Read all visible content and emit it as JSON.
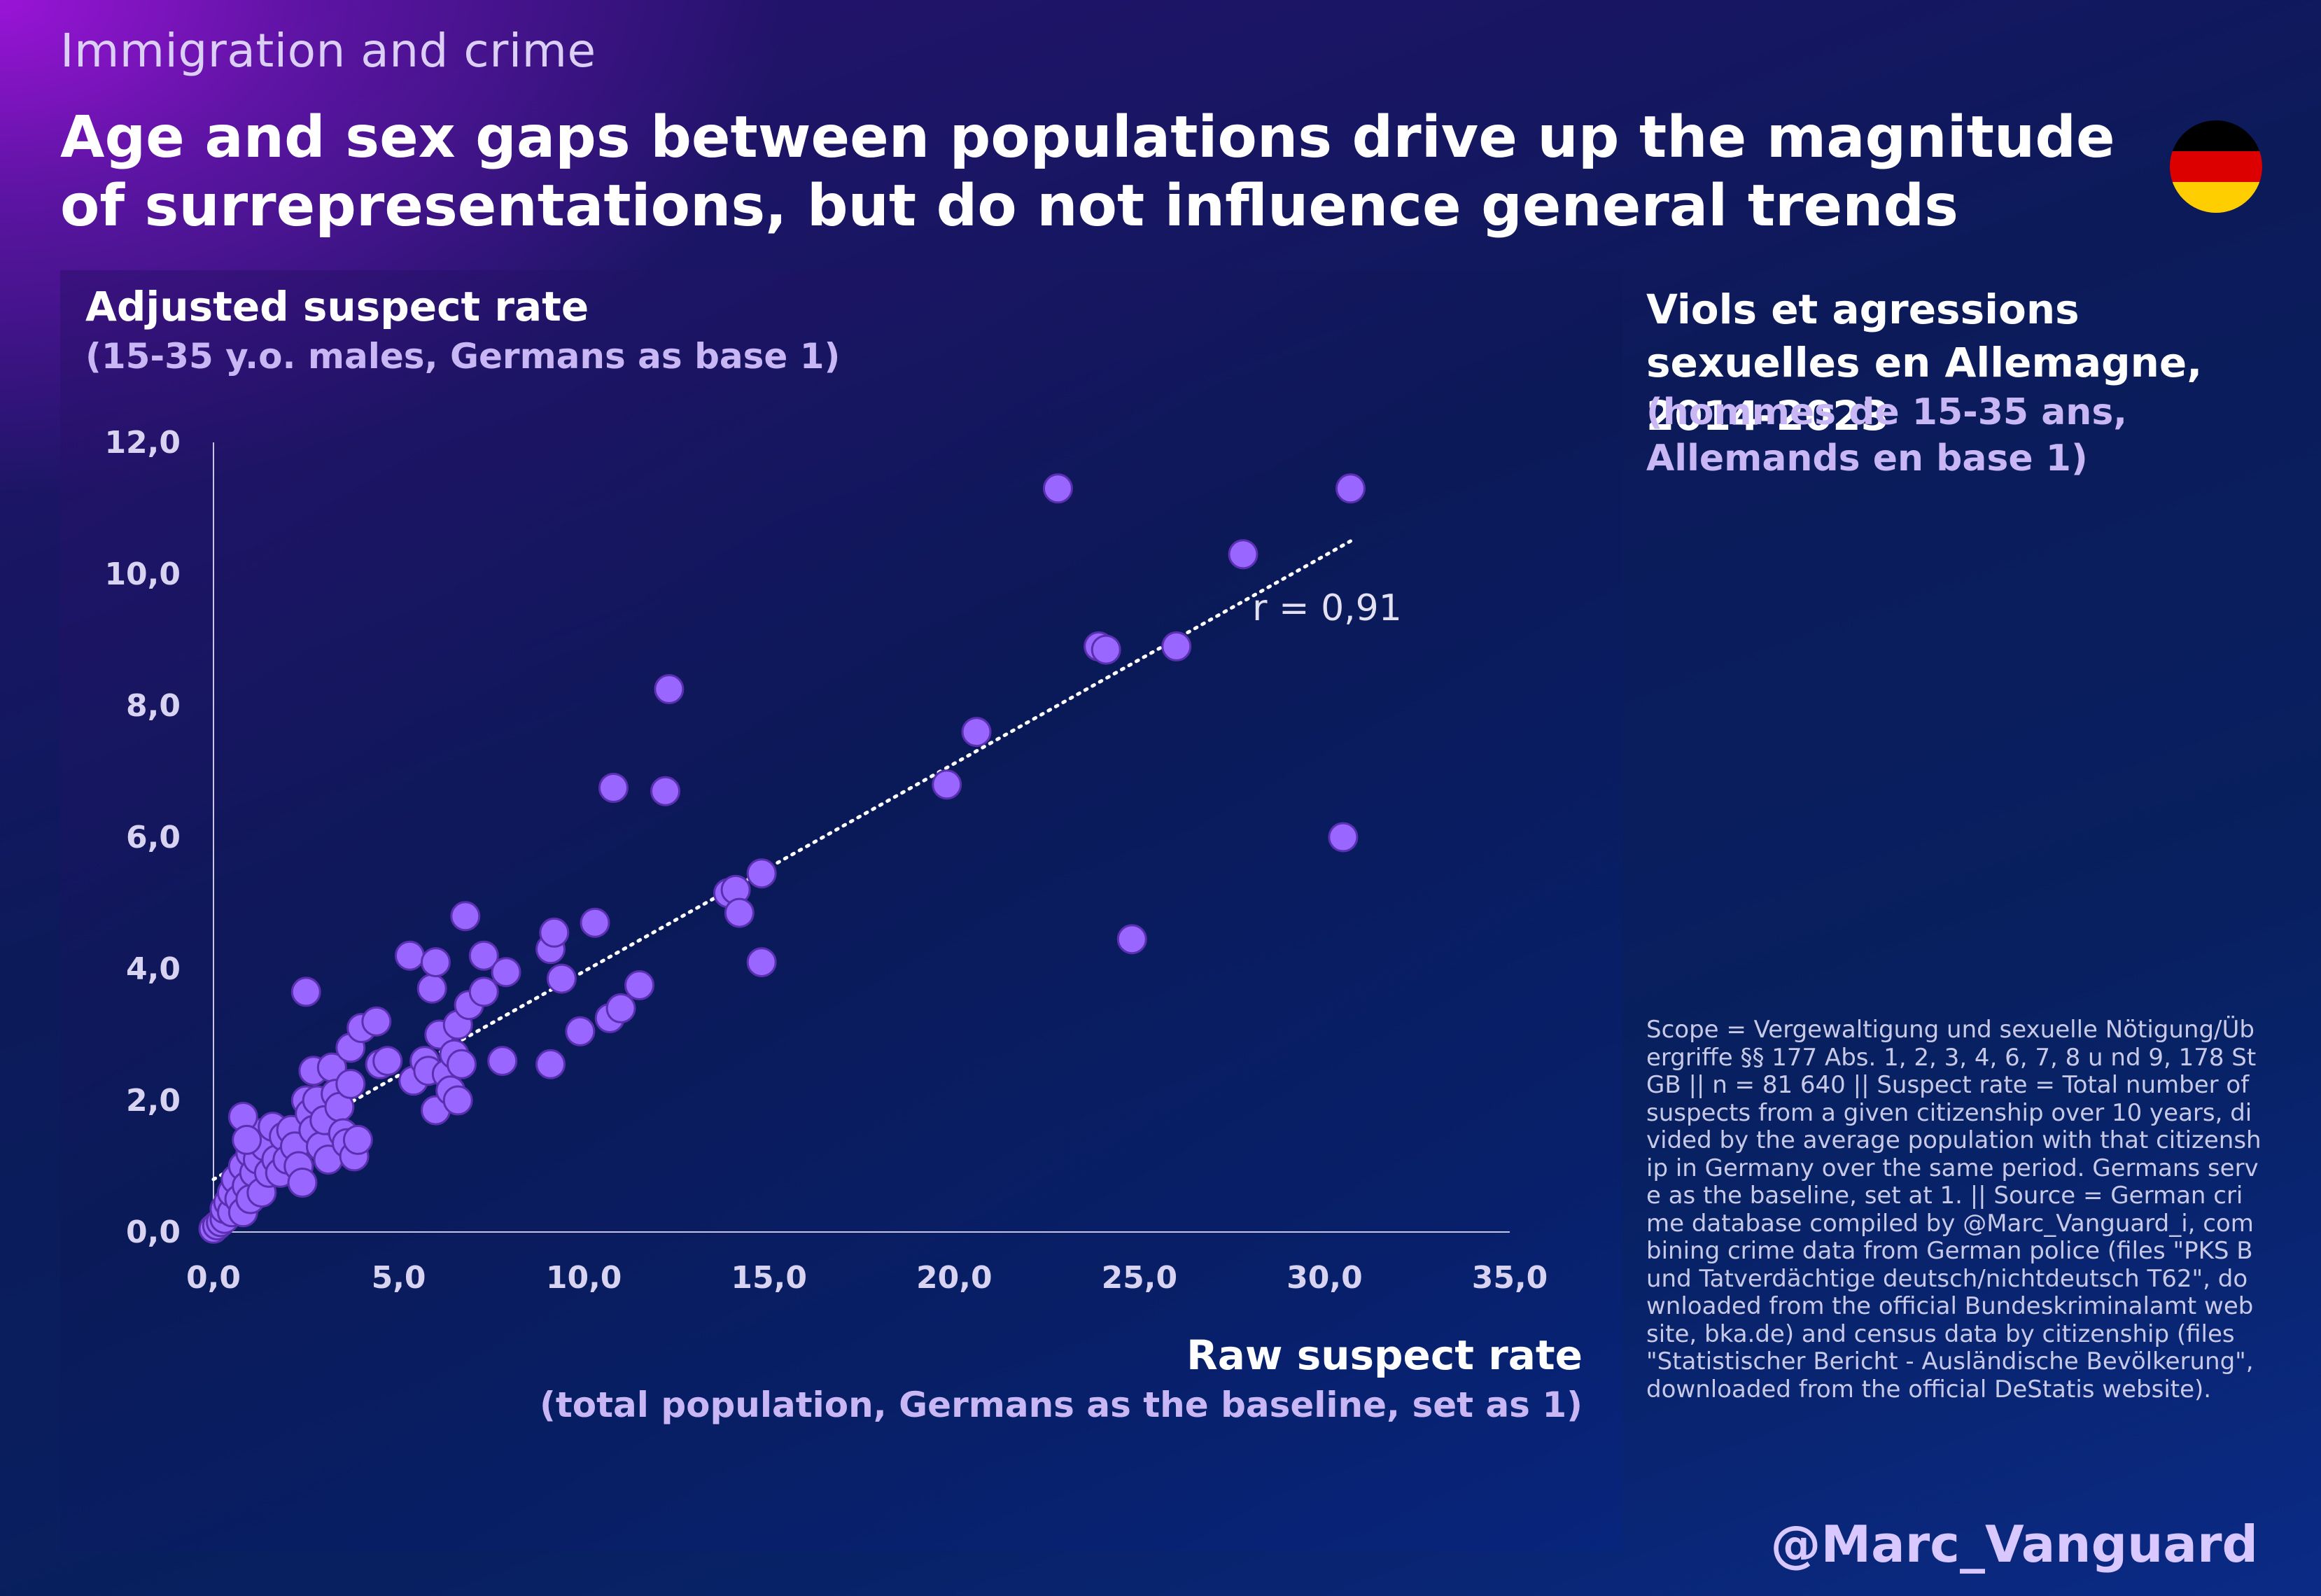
{
  "header": {
    "kicker": "Immigration and crime",
    "title": "Age and sex gaps between populations drive up the magnitude of surrepresentations, but do not influence general trends"
  },
  "flag": {
    "icon": "germany-flag-icon",
    "colors": [
      "#000000",
      "#dd0000",
      "#ffce00"
    ]
  },
  "axes_text": {
    "y_title": "Adjusted suspect rate",
    "y_subtitle": "(15-35 y.o. males, Germans as base 1)",
    "x_title": "Raw suspect rate",
    "x_subtitle": "(total population, Germans as the baseline, set as 1)"
  },
  "side": {
    "title": "Viols et agressions sexuelles en Allemagne, 2014-2023",
    "subtitle": "(hommes de 15-35 ans, Allemands en base 1)",
    "notes": "Scope = Vergewaltigung und sexuelle Nötigung/Übergriffe §§ 177 Abs. 1, 2, 3, 4, 6, 7, 8 u nd 9, 178 StGB || n = 81 640 || Suspect rate = Total number of suspects from a given citizenship over 10 years, divided by the average population with that citizenship in Germany over the same period. Germans serve as the baseline, set at 1. || Source = German crime database compiled by @Marc_Vanguard_i, combining crime data from German police (files \"PKS Bund Tatverdächtige deutsch/nichtdeutsch T62\", downloaded from the official Bundeskriminalamt website, bka.de) and census data by citizenship (files \"Statistischer Bericht - Ausländische Bevölkerung\", downloaded from the official DeStatis website)."
  },
  "footer": {
    "handle": "@Marc_Vanguard"
  },
  "colors": {
    "point_fill": "#9966ff",
    "point_stroke": "#5a2fb0",
    "axis_line": "#c9c3e6",
    "trendline": "#ffffff",
    "accent_text": "#c8b6f5"
  },
  "chart_data": {
    "type": "scatter",
    "xlabel": "Raw suspect rate",
    "ylabel": "Adjusted suspect rate",
    "xlim": [
      0,
      35
    ],
    "ylim": [
      0,
      12
    ],
    "x_ticks": [
      "0,0",
      "5,0",
      "10,0",
      "15,0",
      "20,0",
      "25,0",
      "30,0",
      "35,0"
    ],
    "y_ticks": [
      "0,0",
      "2,0",
      "4,0",
      "6,0",
      "8,0",
      "10,0",
      "12,0"
    ],
    "grid": false,
    "annotation": "r = 0,91",
    "trendline": {
      "x": [
        0,
        30.7
      ],
      "y": [
        0.8,
        10.5
      ],
      "style": "dotted"
    },
    "points": [
      {
        "x": 0.0,
        "y": 0.05
      },
      {
        "x": 0.1,
        "y": 0.1
      },
      {
        "x": 0.2,
        "y": 0.15
      },
      {
        "x": 0.3,
        "y": 0.2
      },
      {
        "x": 0.3,
        "y": 0.35
      },
      {
        "x": 0.4,
        "y": 0.45
      },
      {
        "x": 0.5,
        "y": 0.3
      },
      {
        "x": 0.5,
        "y": 0.6
      },
      {
        "x": 0.6,
        "y": 0.8
      },
      {
        "x": 0.7,
        "y": 0.5
      },
      {
        "x": 0.8,
        "y": 1.0
      },
      {
        "x": 0.8,
        "y": 0.3
      },
      {
        "x": 0.9,
        "y": 0.7
      },
      {
        "x": 1.0,
        "y": 1.2
      },
      {
        "x": 1.0,
        "y": 0.5
      },
      {
        "x": 1.1,
        "y": 0.9
      },
      {
        "x": 1.2,
        "y": 1.5
      },
      {
        "x": 1.2,
        "y": 1.1
      },
      {
        "x": 1.3,
        "y": 0.6
      },
      {
        "x": 1.4,
        "y": 1.3
      },
      {
        "x": 1.5,
        "y": 0.9
      },
      {
        "x": 1.6,
        "y": 1.6
      },
      {
        "x": 1.7,
        "y": 1.1
      },
      {
        "x": 1.8,
        "y": 0.9
      },
      {
        "x": 0.8,
        "y": 1.75
      },
      {
        "x": 0.9,
        "y": 1.4
      },
      {
        "x": 1.9,
        "y": 1.45
      },
      {
        "x": 2.0,
        "y": 1.1
      },
      {
        "x": 2.1,
        "y": 1.55
      },
      {
        "x": 2.2,
        "y": 1.3
      },
      {
        "x": 2.3,
        "y": 1.0
      },
      {
        "x": 2.4,
        "y": 0.75
      },
      {
        "x": 2.5,
        "y": 2.0
      },
      {
        "x": 2.5,
        "y": 3.65
      },
      {
        "x": 2.6,
        "y": 1.8
      },
      {
        "x": 2.7,
        "y": 1.55
      },
      {
        "x": 2.7,
        "y": 2.45
      },
      {
        "x": 2.8,
        "y": 2.0
      },
      {
        "x": 2.9,
        "y": 1.3
      },
      {
        "x": 3.0,
        "y": 1.7
      },
      {
        "x": 3.1,
        "y": 1.1
      },
      {
        "x": 3.2,
        "y": 2.5
      },
      {
        "x": 3.3,
        "y": 2.1
      },
      {
        "x": 3.4,
        "y": 1.9
      },
      {
        "x": 3.5,
        "y": 1.5
      },
      {
        "x": 3.6,
        "y": 1.35
      },
      {
        "x": 3.7,
        "y": 2.8
      },
      {
        "x": 3.7,
        "y": 2.25
      },
      {
        "x": 3.8,
        "y": 1.15
      },
      {
        "x": 3.9,
        "y": 1.4
      },
      {
        "x": 4.0,
        "y": 3.1
      },
      {
        "x": 4.4,
        "y": 3.2
      },
      {
        "x": 4.5,
        "y": 2.55
      },
      {
        "x": 4.7,
        "y": 2.6
      },
      {
        "x": 5.3,
        "y": 4.2
      },
      {
        "x": 5.4,
        "y": 2.3
      },
      {
        "x": 5.7,
        "y": 2.6
      },
      {
        "x": 5.8,
        "y": 2.45
      },
      {
        "x": 5.9,
        "y": 3.7
      },
      {
        "x": 6.0,
        "y": 4.1
      },
      {
        "x": 6.0,
        "y": 1.85
      },
      {
        "x": 6.1,
        "y": 3.0
      },
      {
        "x": 6.3,
        "y": 2.4
      },
      {
        "x": 6.4,
        "y": 2.15
      },
      {
        "x": 6.5,
        "y": 2.7
      },
      {
        "x": 6.6,
        "y": 3.15
      },
      {
        "x": 6.6,
        "y": 2.0
      },
      {
        "x": 6.7,
        "y": 2.55
      },
      {
        "x": 6.8,
        "y": 4.8
      },
      {
        "x": 6.9,
        "y": 3.45
      },
      {
        "x": 7.3,
        "y": 4.2
      },
      {
        "x": 7.3,
        "y": 3.65
      },
      {
        "x": 7.8,
        "y": 2.6
      },
      {
        "x": 7.9,
        "y": 3.95
      },
      {
        "x": 9.1,
        "y": 2.55
      },
      {
        "x": 9.1,
        "y": 4.3
      },
      {
        "x": 9.2,
        "y": 4.55
      },
      {
        "x": 9.4,
        "y": 3.85
      },
      {
        "x": 9.9,
        "y": 3.05
      },
      {
        "x": 10.3,
        "y": 4.7
      },
      {
        "x": 10.7,
        "y": 3.25
      },
      {
        "x": 10.8,
        "y": 6.75
      },
      {
        "x": 11.0,
        "y": 3.4
      },
      {
        "x": 11.5,
        "y": 3.75
      },
      {
        "x": 12.2,
        "y": 6.7
      },
      {
        "x": 12.3,
        "y": 8.25
      },
      {
        "x": 13.9,
        "y": 5.15
      },
      {
        "x": 14.1,
        "y": 5.2
      },
      {
        "x": 14.2,
        "y": 4.85
      },
      {
        "x": 14.8,
        "y": 4.1
      },
      {
        "x": 14.8,
        "y": 5.45
      },
      {
        "x": 19.8,
        "y": 6.8
      },
      {
        "x": 20.6,
        "y": 7.6
      },
      {
        "x": 22.8,
        "y": 11.3
      },
      {
        "x": 23.9,
        "y": 8.9
      },
      {
        "x": 24.1,
        "y": 8.85
      },
      {
        "x": 24.8,
        "y": 4.45
      },
      {
        "x": 26.0,
        "y": 8.9
      },
      {
        "x": 27.8,
        "y": 10.3
      },
      {
        "x": 30.5,
        "y": 6.0
      },
      {
        "x": 30.7,
        "y": 11.3
      }
    ]
  }
}
